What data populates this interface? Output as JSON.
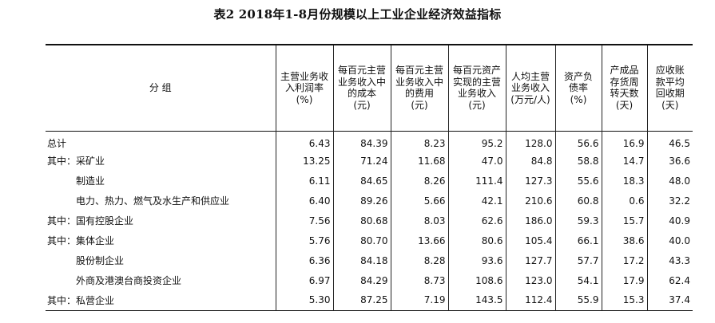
{
  "title": "表2  2018年1-8月份规模以上工业企业经济效益指标",
  "headers": [
    "分  组",
    "主营业务收\n入利润率\n(%)",
    "每百元主营\n业务收入中\n的成本\n(元)",
    "每百元主营\n业务收入中\n的费用\n(元)",
    "每百元资产\n实现的主营\n业务收入\n(元)",
    "人均主营\n业务收入\n(万元/人)",
    "资产负\n债率\n(%)",
    "产成品\n存货周\n转天数\n(天)",
    "应收账\n款平均\n回收期\n(天)"
  ],
  "rows": [
    {
      "name": "总计",
      "values": [
        "6.43",
        "84.39",
        "8.23",
        "95.2",
        "128.0",
        "56.6",
        "16.9",
        "46.5"
      ]
    },
    {
      "name": "其中：采矿业",
      "values": [
        "13.25",
        "71.24",
        "11.68",
        "47.0",
        "84.8",
        "58.8",
        "14.7",
        "36.6"
      ]
    },
    {
      "name": "　　　制造业",
      "values": [
        "6.11",
        "84.65",
        "8.26",
        "111.4",
        "127.3",
        "55.6",
        "18.3",
        "48.0"
      ]
    },
    {
      "name": "　　　电力、热力、燃气及水生产和供应业",
      "values": [
        "6.40",
        "89.26",
        "5.66",
        "42.1",
        "210.6",
        "60.8",
        "0.6",
        "32.2"
      ]
    },
    {
      "name": "其中：国有控股企业",
      "values": [
        "7.56",
        "80.68",
        "8.03",
        "62.6",
        "186.0",
        "59.3",
        "15.7",
        "40.9"
      ]
    },
    {
      "name": "其中：集体企业",
      "values": [
        "5.76",
        "80.70",
        "13.66",
        "80.6",
        "105.4",
        "66.1",
        "38.6",
        "40.0"
      ]
    },
    {
      "name": "　　　股份制企业",
      "values": [
        "6.36",
        "84.18",
        "8.28",
        "93.6",
        "127.7",
        "57.7",
        "17.2",
        "43.3"
      ]
    },
    {
      "name": "　　　外商及港澳台商投资企业",
      "values": [
        "6.97",
        "84.29",
        "8.73",
        "108.6",
        "123.0",
        "54.1",
        "17.9",
        "62.4"
      ]
    },
    {
      "name": "其中：私营企业",
      "values": [
        "5.30",
        "87.25",
        "7.19",
        "143.5",
        "112.4",
        "55.9",
        "15.3",
        "37.4"
      ]
    }
  ]
}
